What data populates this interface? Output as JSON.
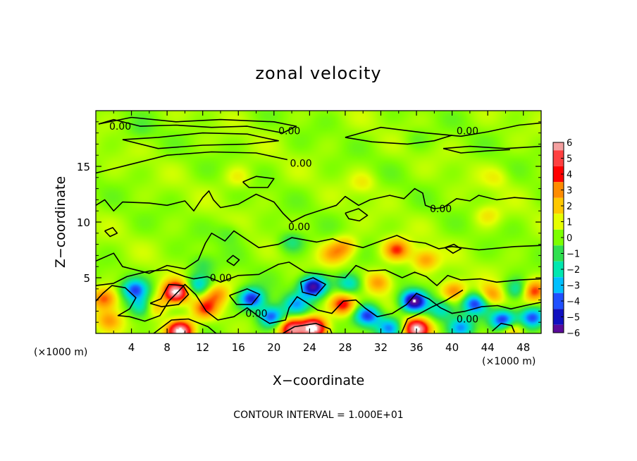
{
  "chart_data": {
    "type": "heatmap",
    "title": "zonal velocity",
    "xlabel": "X−coordinate",
    "ylabel": "Z−coordinate",
    "x_unit_left": "(×1000 m)",
    "x_unit_right": "(×1000 m)",
    "footer": "CONTOUR INTERVAL = 1.000E+01",
    "xlim": [
      0,
      50
    ],
    "ylim": [
      0,
      20
    ],
    "x_ticks": [
      4,
      8,
      12,
      16,
      20,
      24,
      28,
      32,
      36,
      40,
      44,
      48
    ],
    "x_tick_labels": [
      "4",
      "8",
      "12",
      "16",
      "20",
      "24",
      "28",
      "32",
      "36",
      "40",
      "44",
      "48"
    ],
    "y_ticks": [
      5,
      10,
      15
    ],
    "y_tick_labels": [
      "5",
      "10",
      "15"
    ],
    "colorbar": {
      "min": -6,
      "max": 6,
      "ticks": [
        6,
        5,
        4,
        3,
        2,
        1,
        0,
        -1,
        -2,
        -3,
        -4,
        -5,
        -6
      ],
      "tick_labels": [
        "6",
        "5",
        "4",
        "3",
        "2",
        "1",
        "0",
        "−1",
        "−2",
        "−3",
        "−4",
        "−5",
        "−6"
      ],
      "colors": [
        "#f4a0a0",
        "#ff4040",
        "#ff0000",
        "#ff8c00",
        "#ffc800",
        "#e6ff00",
        "#7cff00",
        "#30e050",
        "#00e8b0",
        "#00c0ff",
        "#2050ff",
        "#1010c0",
        "#5a0a9a"
      ]
    },
    "contour_labels": [
      {
        "text": "0.00",
        "x": 1.5,
        "y": 18.6
      },
      {
        "text": "0.00",
        "x": 20.5,
        "y": 18.2
      },
      {
        "text": "0.00",
        "x": 40.5,
        "y": 18.2
      },
      {
        "text": "0.00",
        "x": 21.8,
        "y": 15.3
      },
      {
        "text": "0.00",
        "x": 37.5,
        "y": 11.2
      },
      {
        "text": "0.00",
        "x": 21.6,
        "y": 9.6
      },
      {
        "text": "0.00",
        "x": 12.8,
        "y": 5.0
      },
      {
        "text": "0.00",
        "x": 16.8,
        "y": 1.8
      },
      {
        "text": "0.00",
        "x": 40.5,
        "y": 1.3
      }
    ],
    "features": [
      {
        "x": 9,
        "y": 3.7,
        "v": 6.5
      },
      {
        "x": 6.5,
        "y": 2.4,
        "v": 3
      },
      {
        "x": 1,
        "y": 3.1,
        "v": 3.2
      },
      {
        "x": 1.5,
        "y": 1.2,
        "v": 2.2
      },
      {
        "x": 9.5,
        "y": 0.2,
        "v": 6.5
      },
      {
        "x": 12.3,
        "y": 2.2,
        "v": 3.2
      },
      {
        "x": 4.4,
        "y": 3.9,
        "v": -4
      },
      {
        "x": 5.3,
        "y": 2.4,
        "v": -3.5
      },
      {
        "x": 11.5,
        "y": 4.3,
        "v": -3
      },
      {
        "x": 13.5,
        "y": 3.5,
        "v": 2.5
      },
      {
        "x": 17.5,
        "y": 3.1,
        "v": -5
      },
      {
        "x": 19.7,
        "y": 1.5,
        "v": -4.5
      },
      {
        "x": 24.4,
        "y": 4.2,
        "v": -6
      },
      {
        "x": 22.5,
        "y": 2.6,
        "v": -3
      },
      {
        "x": 22,
        "y": 0.4,
        "v": 5
      },
      {
        "x": 24.5,
        "y": 0.5,
        "v": 6.5
      },
      {
        "x": 27.8,
        "y": 2.6,
        "v": 4
      },
      {
        "x": 28.5,
        "y": 4.5,
        "v": -3
      },
      {
        "x": 30.5,
        "y": 1.6,
        "v": -4.5
      },
      {
        "x": 33,
        "y": 0.5,
        "v": -3.5
      },
      {
        "x": 35.7,
        "y": 2.9,
        "v": -6.5
      },
      {
        "x": 36,
        "y": 0.4,
        "v": 6
      },
      {
        "x": 38.8,
        "y": 2.1,
        "v": -2.5
      },
      {
        "x": 40.2,
        "y": 3.8,
        "v": 3
      },
      {
        "x": 41,
        "y": 0.5,
        "v": -3.5
      },
      {
        "x": 42.6,
        "y": 2.7,
        "v": -4.5
      },
      {
        "x": 44.3,
        "y": 3.4,
        "v": 2.8
      },
      {
        "x": 45.8,
        "y": 1.1,
        "v": -5.5
      },
      {
        "x": 47.5,
        "y": 3.9,
        "v": -3
      },
      {
        "x": 49,
        "y": 3.8,
        "v": 4
      },
      {
        "x": 49,
        "y": 1.4,
        "v": -4.5
      },
      {
        "x": 46.6,
        "y": 0.4,
        "v": 3.5
      },
      {
        "x": 31.8,
        "y": 4.6,
        "v": 2.5
      },
      {
        "x": 33.8,
        "y": 7.5,
        "v": 3.4
      },
      {
        "x": 28,
        "y": 7.8,
        "v": 2.2
      },
      {
        "x": 26.6,
        "y": 7.1,
        "v": 1.8
      },
      {
        "x": 37,
        "y": 6.6,
        "v": 2.5
      },
      {
        "x": 22,
        "y": 8.2,
        "v": -1.8
      },
      {
        "x": 12,
        "y": 6.2,
        "v": -1.2
      },
      {
        "x": 16,
        "y": 14,
        "v": 1
      },
      {
        "x": 30,
        "y": 13.5,
        "v": 1
      },
      {
        "x": 45,
        "y": 14,
        "v": 0.8
      },
      {
        "x": 36,
        "y": 17.5,
        "v": -0.6
      },
      {
        "x": 5,
        "y": 18.2,
        "v": -0.6
      },
      {
        "x": 44,
        "y": 10.6,
        "v": 1.2
      },
      {
        "x": 15,
        "y": 9,
        "v": -0.9
      }
    ],
    "zero_contours": [
      [
        [
          0.3,
          18.8
        ],
        [
          2,
          19.2
        ],
        [
          5,
          18.6
        ],
        [
          9,
          18.7
        ],
        [
          13,
          18.5
        ],
        [
          17,
          18.6
        ],
        [
          21,
          18.0
        ],
        [
          22.5,
          18.6
        ],
        [
          20,
          19.0
        ],
        [
          14,
          19.2
        ],
        [
          9,
          19.0
        ],
        [
          4,
          19.4
        ],
        [
          0.3,
          18.8
        ]
      ],
      [
        [
          3,
          17.4
        ],
        [
          7,
          17.6
        ],
        [
          12,
          18.0
        ],
        [
          17,
          17.9
        ],
        [
          20.5,
          17.3
        ],
        [
          17,
          17.0
        ],
        [
          12,
          16.9
        ],
        [
          7,
          16.6
        ],
        [
          3,
          17.4
        ]
      ],
      [
        [
          28,
          17.6
        ],
        [
          32,
          18.5
        ],
        [
          37,
          18.0
        ],
        [
          41,
          17.7
        ],
        [
          44,
          18.1
        ],
        [
          47.5,
          18.7
        ],
        [
          50,
          18.9
        ]
      ],
      [
        [
          28,
          17.6
        ],
        [
          31,
          17.2
        ],
        [
          35,
          17.0
        ],
        [
          38,
          17.3
        ],
        [
          40,
          17.8
        ]
      ],
      [
        [
          39,
          16.6
        ],
        [
          42,
          16.8
        ],
        [
          46,
          16.6
        ],
        [
          50,
          16.8
        ]
      ],
      [
        [
          39,
          16.6
        ],
        [
          41,
          16.2
        ],
        [
          44,
          16.4
        ],
        [
          46.5,
          16.5
        ]
      ],
      [
        [
          0,
          14.4
        ],
        [
          4,
          15.2
        ],
        [
          8,
          16.0
        ],
        [
          13,
          16.3
        ],
        [
          18,
          16.2
        ],
        [
          21.5,
          15.6
        ]
      ],
      [
        [
          0,
          11.5
        ],
        [
          1,
          12.0
        ],
        [
          2,
          11.0
        ],
        [
          3,
          11.8
        ],
        [
          6,
          11.7
        ],
        [
          8,
          11.5
        ],
        [
          10,
          11.9
        ],
        [
          11,
          11.0
        ],
        [
          12,
          12.2
        ],
        [
          12.7,
          12.8
        ],
        [
          13.2,
          12.0
        ],
        [
          14,
          11.3
        ],
        [
          16,
          11.6
        ],
        [
          18,
          12.5
        ],
        [
          20,
          11.8
        ],
        [
          21,
          10.8
        ],
        [
          22,
          10.0
        ],
        [
          23.5,
          10.6
        ],
        [
          25,
          11.0
        ],
        [
          27,
          11.5
        ],
        [
          28,
          12.3
        ],
        [
          29.5,
          11.5
        ],
        [
          30.8,
          12.0
        ],
        [
          33,
          12.4
        ],
        [
          34.6,
          12.1
        ],
        [
          35.8,
          13.0
        ],
        [
          36.7,
          12.6
        ],
        [
          37,
          11.5
        ],
        [
          38,
          11.2
        ],
        [
          39,
          11.3
        ],
        [
          40.5,
          12.1
        ],
        [
          42,
          11.9
        ],
        [
          43,
          12.4
        ],
        [
          45,
          12.0
        ],
        [
          47,
          12.2
        ],
        [
          50,
          12.0
        ]
      ],
      [
        [
          0,
          6.5
        ],
        [
          2,
          7.2
        ],
        [
          3,
          6.0
        ],
        [
          6,
          5.4
        ],
        [
          8,
          6.1
        ],
        [
          10,
          5.8
        ],
        [
          11.5,
          6.6
        ],
        [
          12.3,
          8.1
        ],
        [
          13,
          9.0
        ],
        [
          14.5,
          8.3
        ],
        [
          15.5,
          9.2
        ],
        [
          17,
          8.4
        ],
        [
          18.3,
          7.7
        ],
        [
          20.5,
          8.0
        ],
        [
          22,
          8.6
        ],
        [
          24.8,
          8.2
        ],
        [
          26.6,
          8.5
        ],
        [
          27.5,
          8.2
        ],
        [
          30,
          7.7
        ],
        [
          32,
          8.3
        ],
        [
          33.8,
          8.8
        ],
        [
          35.2,
          8.3
        ],
        [
          37,
          8.1
        ],
        [
          38.5,
          7.6
        ],
        [
          40,
          7.8
        ],
        [
          43,
          7.5
        ],
        [
          47,
          7.8
        ],
        [
          50,
          7.9
        ]
      ],
      [
        [
          0,
          4.3
        ],
        [
          2,
          4.5
        ],
        [
          3.5,
          5.1
        ],
        [
          6,
          5.6
        ],
        [
          8,
          5.7
        ],
        [
          10,
          5.1
        ],
        [
          11,
          4.9
        ],
        [
          12.5,
          5.1
        ],
        [
          14,
          4.6
        ],
        [
          16,
          5.2
        ],
        [
          18.3,
          5.3
        ],
        [
          20.5,
          6.2
        ],
        [
          21.7,
          6.4
        ],
        [
          23.5,
          5.5
        ],
        [
          25.4,
          5.3
        ],
        [
          26.8,
          5.1
        ],
        [
          28,
          5.0
        ],
        [
          29.2,
          6.1
        ],
        [
          30.6,
          5.6
        ],
        [
          32.5,
          5.7
        ],
        [
          34.4,
          5.0
        ],
        [
          35.8,
          5.5
        ],
        [
          37.1,
          5.1
        ],
        [
          38.3,
          4.3
        ],
        [
          39.5,
          5.2
        ],
        [
          41,
          4.8
        ],
        [
          43.2,
          4.9
        ],
        [
          45,
          4.6
        ],
        [
          47.5,
          4.8
        ],
        [
          50,
          4.9
        ]
      ],
      [
        [
          0,
          2.9
        ],
        [
          0.8,
          3.6
        ],
        [
          1.8,
          4.3
        ],
        [
          3.3,
          4.1
        ],
        [
          4.5,
          3.2
        ],
        [
          3.8,
          2.2
        ],
        [
          2.5,
          1.6
        ],
        [
          3.8,
          1.5
        ],
        [
          5.5,
          1.1
        ],
        [
          7.2,
          1.6
        ],
        [
          8.2,
          2.9
        ],
        [
          9.3,
          3.8
        ],
        [
          10,
          4.4
        ],
        [
          11.2,
          3.5
        ],
        [
          12.4,
          2.0
        ],
        [
          13.7,
          1.2
        ],
        [
          15.5,
          1.5
        ],
        [
          17,
          2.3
        ],
        [
          18.3,
          1.5
        ],
        [
          19.5,
          0.9
        ],
        [
          21.3,
          1.2
        ],
        [
          21.7,
          2.3
        ],
        [
          22.6,
          3.3
        ],
        [
          23.6,
          2.8
        ],
        [
          24.9,
          2.1
        ],
        [
          26.5,
          1.8
        ],
        [
          27.8,
          2.9
        ],
        [
          29.2,
          3.0
        ],
        [
          30.2,
          2.3
        ],
        [
          31.6,
          1.5
        ],
        [
          33.3,
          1.8
        ],
        [
          34.9,
          2.6
        ],
        [
          36,
          3.6
        ],
        [
          37.4,
          3.1
        ],
        [
          38.7,
          2.3
        ],
        [
          40,
          1.8
        ],
        [
          41.5,
          2.0
        ],
        [
          43.3,
          2.4
        ],
        [
          45.1,
          2.5
        ],
        [
          46.6,
          2.2
        ],
        [
          48.2,
          2.5
        ],
        [
          50,
          2.8
        ]
      ],
      [
        [
          34.3,
          0
        ],
        [
          35,
          1.3
        ],
        [
          36.4,
          1.8
        ],
        [
          37.8,
          2.4
        ],
        [
          39.4,
          3.0
        ],
        [
          40.4,
          3.5
        ],
        [
          41.2,
          3.9
        ]
      ],
      [
        [
          6.1,
          2.7
        ],
        [
          7.3,
          3.1
        ],
        [
          8.2,
          4.4
        ],
        [
          9.8,
          4.3
        ],
        [
          10.4,
          3.5
        ],
        [
          9.3,
          2.6
        ],
        [
          7.4,
          2.4
        ],
        [
          6.1,
          2.7
        ]
      ],
      [
        [
          15,
          3.4
        ],
        [
          17,
          4.0
        ],
        [
          18.4,
          3.5
        ],
        [
          17.5,
          2.6
        ],
        [
          15.8,
          2.6
        ],
        [
          15,
          3.4
        ]
      ],
      [
        [
          23,
          4.6
        ],
        [
          24.4,
          5.0
        ],
        [
          25.8,
          4.4
        ],
        [
          24.7,
          3.4
        ],
        [
          23.2,
          3.7
        ],
        [
          23,
          4.6
        ]
      ],
      [
        [
          44.5,
          0.2
        ],
        [
          45.5,
          0.9
        ],
        [
          46.7,
          0.7
        ],
        [
          47,
          0.1
        ]
      ],
      [
        [
          6.5,
          0
        ],
        [
          8.5,
          1.2
        ],
        [
          10.4,
          1.3
        ],
        [
          12.6,
          0.6
        ],
        [
          13.5,
          0
        ]
      ],
      [
        [
          21,
          0
        ],
        [
          22.3,
          0.6
        ],
        [
          24.7,
          0.9
        ],
        [
          26.3,
          0.4
        ],
        [
          26.5,
          0
        ]
      ],
      [
        [
          16.5,
          13.6
        ],
        [
          18,
          14.1
        ],
        [
          20,
          13.9
        ],
        [
          19.3,
          13.1
        ],
        [
          17.2,
          13.1
        ],
        [
          16.5,
          13.6
        ]
      ],
      [
        [
          28,
          10.8
        ],
        [
          29.5,
          11.2
        ],
        [
          30.5,
          10.6
        ],
        [
          29.6,
          10.1
        ],
        [
          28.4,
          10.3
        ],
        [
          28,
          10.8
        ]
      ],
      [
        [
          14.7,
          6.5
        ],
        [
          15.4,
          7.0
        ],
        [
          16.1,
          6.6
        ],
        [
          15.5,
          6.1
        ],
        [
          14.7,
          6.5
        ]
      ],
      [
        [
          1,
          9.2
        ],
        [
          1.9,
          9.5
        ],
        [
          2.4,
          9.0
        ],
        [
          1.6,
          8.7
        ],
        [
          1,
          9.2
        ]
      ],
      [
        [
          39.2,
          7.7
        ],
        [
          40.2,
          8.0
        ],
        [
          41,
          7.6
        ],
        [
          40.1,
          7.2
        ],
        [
          39.2,
          7.7
        ]
      ]
    ]
  }
}
